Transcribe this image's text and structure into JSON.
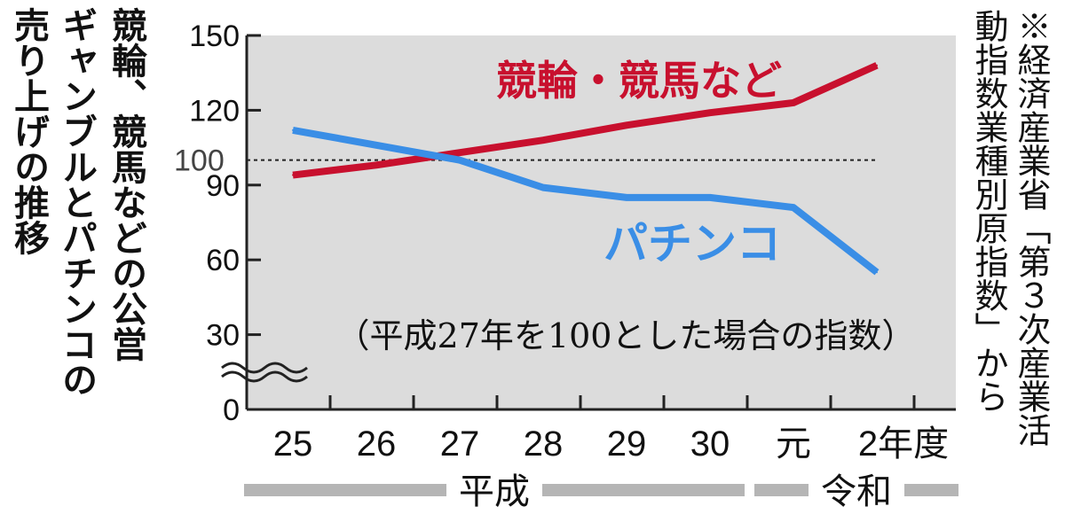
{
  "title_lines": [
    "競輪、競馬などの公営",
    "ギャンブルとパチンコの",
    "売り上げの推移"
  ],
  "source_lines": [
    "※経済産業省「第３次産業活",
    "動指数業種別原指数」から"
  ],
  "chart_data": {
    "type": "line",
    "title": "競輪、競馬などの公営ギャンブルとパチンコの売り上げの推移",
    "note": "（平成27年を100とした場合の指数）",
    "categories": [
      "25",
      "26",
      "27",
      "28",
      "29",
      "30",
      "元",
      "2年度"
    ],
    "eras": [
      {
        "label": "平成",
        "categories": [
          "25",
          "26",
          "27",
          "28",
          "29",
          "30"
        ]
      },
      {
        "label": "令和",
        "categories": [
          "元",
          "2年度"
        ]
      }
    ],
    "y_ticks": [
      0,
      30,
      60,
      90,
      120,
      150
    ],
    "y_reference": {
      "value": 100,
      "label": "100",
      "style": "dotted"
    },
    "ylim": [
      0,
      150
    ],
    "axis_break": true,
    "grid": false,
    "series": [
      {
        "name": "競輪・競馬など",
        "color": "#c8102e",
        "values": [
          94,
          98,
          103,
          108,
          114,
          119,
          123,
          138
        ]
      },
      {
        "name": "パチンコ",
        "color": "#3a8ee6",
        "values": [
          112,
          106,
          100,
          89,
          85,
          85,
          81,
          55
        ]
      }
    ]
  }
}
